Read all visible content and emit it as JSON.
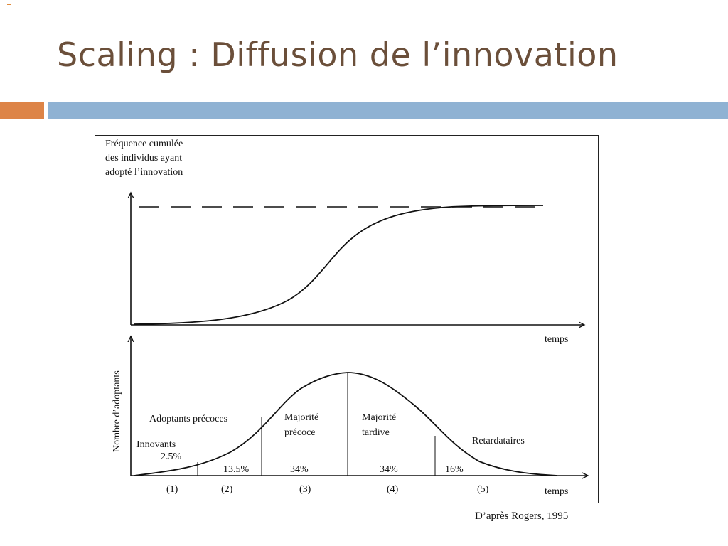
{
  "slide": {
    "title": "Scaling : Diffusion de l’innovation",
    "accent_color": "#dd8447",
    "bar_color": "#8fb2d3",
    "title_color": "#6b4f3a"
  },
  "top_chart": {
    "ylabel_lines": [
      "Fréquence cumulée",
      "des individus ayant",
      "adopté l’innovation"
    ],
    "xlabel": "temps"
  },
  "bottom_chart": {
    "ylabel": "Nombre d’adoptants",
    "xlabel": "temps",
    "categories": [
      {
        "name_lines": [
          "Innovants",
          "2.5%"
        ],
        "percent": "",
        "number": "(1)"
      },
      {
        "name_lines": [
          "Adoptants précoces"
        ],
        "percent": "13.5%",
        "number": "(2)"
      },
      {
        "name_lines": [
          "Majorité",
          "précoce"
        ],
        "percent": "34%",
        "number": "(3)"
      },
      {
        "name_lines": [
          "Majorité",
          "tardive"
        ],
        "percent": "34%",
        "number": "(4)"
      },
      {
        "name_lines": [
          "Retardataires"
        ],
        "percent": "16%",
        "number": "(5)"
      }
    ]
  },
  "source": "D’après Rogers, 1995"
}
